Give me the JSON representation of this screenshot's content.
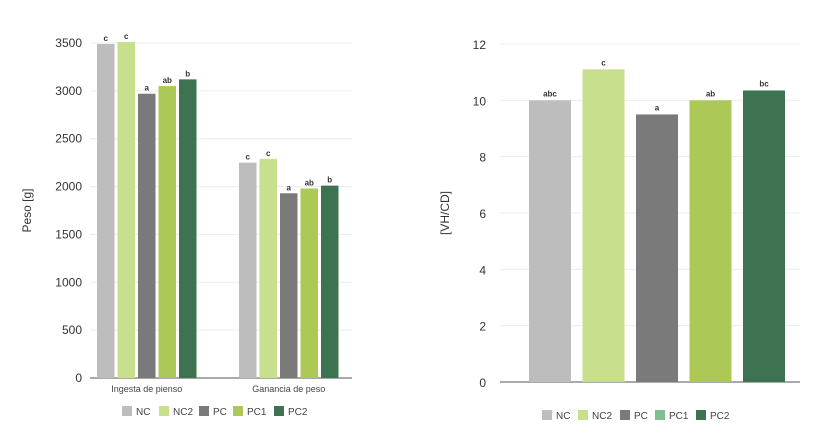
{
  "colors": {
    "NC": "#bdbdbd",
    "NC2": "#c8df8e",
    "PC": "#7a7a7a",
    "PC1": "#acc957",
    "PC2": "#3d7350",
    "PC1_legend_right": "#7fbf8f"
  },
  "chart_data": [
    {
      "type": "bar",
      "title": "",
      "xlabel": "",
      "ylabel": "Peso [g]",
      "ylim": [
        0,
        3500
      ],
      "yticks": [
        0,
        500,
        1000,
        1500,
        2000,
        2500,
        3000,
        3500
      ],
      "grid": true,
      "legend_position": "bottom",
      "categories": [
        "Ingesta de pienso",
        "Ganancia de peso"
      ],
      "series": [
        {
          "name": "NC",
          "values": [
            3490,
            2250
          ],
          "labels": [
            "c",
            "c"
          ]
        },
        {
          "name": "NC2",
          "values": [
            3510,
            2290
          ],
          "labels": [
            "c",
            "c"
          ]
        },
        {
          "name": "PC",
          "values": [
            2970,
            1930
          ],
          "labels": [
            "a",
            "a"
          ]
        },
        {
          "name": "PC1",
          "values": [
            3050,
            1980
          ],
          "labels": [
            "ab",
            "ab"
          ]
        },
        {
          "name": "PC2",
          "values": [
            3120,
            2010
          ],
          "labels": [
            "b",
            "b"
          ]
        }
      ]
    },
    {
      "type": "bar",
      "title": "",
      "xlabel": "",
      "ylabel": "[VH/CD]",
      "ylim": [
        0,
        12
      ],
      "yticks": [
        0,
        2,
        4,
        6,
        8,
        10,
        12
      ],
      "grid": true,
      "legend_position": "bottom",
      "categories": [
        "NC",
        "NC2",
        "PC",
        "PC1",
        "PC2"
      ],
      "values": [
        10.0,
        11.1,
        9.5,
        10.0,
        10.35
      ],
      "labels": [
        "abc",
        "c",
        "a",
        "ab",
        "bc"
      ]
    }
  ]
}
